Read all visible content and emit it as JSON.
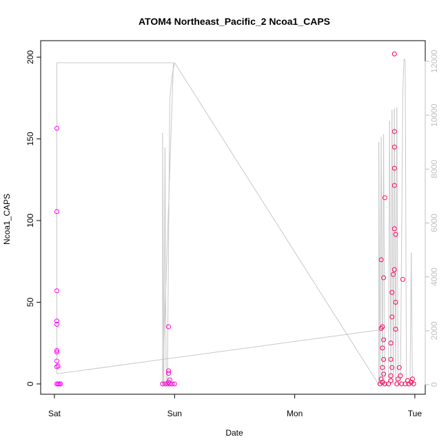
{
  "chart_data": {
    "type": "scatter",
    "title": "ATOM4 Northeast_Pacific_2 Ncoa1_CAPS",
    "xlabel": "Date",
    "ylabel": "Ncoa1_CAPS",
    "x_ticks": [
      "Sat",
      "Sun",
      "Mon",
      "Tue"
    ],
    "y_ticks": [
      "0",
      "50",
      "100",
      "150",
      "200"
    ],
    "ylim": [
      0,
      210
    ],
    "y2_ticks": [
      "0",
      "2000",
      "4000",
      "6000",
      "8000",
      "10000",
      "12000"
    ],
    "y2lim": [
      0,
      12600
    ],
    "xlim_days": [
      -0.1,
      3.1
    ],
    "colors": {
      "points_start": "#ff00ff",
      "points_end": "#ff0055",
      "line": "#c8c8c8",
      "axis": "#000000",
      "axis_right": "#bfbfbf"
    },
    "series": [
      {
        "type": "scatter",
        "x_unit": "days since Sat",
        "points": [
          [
            0.02,
            0
          ],
          [
            0.03,
            0
          ],
          [
            0.04,
            0
          ],
          [
            0.05,
            0
          ],
          [
            0.02,
            10.5
          ],
          [
            0.03,
            11
          ],
          [
            0.02,
            14
          ],
          [
            0.02,
            19.5
          ],
          [
            0.02,
            20.5
          ],
          [
            0.02,
            36.5
          ],
          [
            0.02,
            38.5
          ],
          [
            0.02,
            57
          ],
          [
            0.02,
            105.5
          ],
          [
            0.02,
            156.5
          ],
          [
            0.9,
            0
          ],
          [
            0.92,
            0
          ],
          [
            0.94,
            0
          ],
          [
            0.96,
            0
          ],
          [
            0.98,
            0
          ],
          [
            1.0,
            0
          ],
          [
            0.95,
            1
          ],
          [
            0.96,
            2.5
          ],
          [
            0.95,
            6.5
          ],
          [
            0.95,
            8
          ],
          [
            0.95,
            35
          ],
          [
            2.71,
            0
          ],
          [
            2.73,
            1
          ],
          [
            2.75,
            0
          ],
          [
            2.72,
            3
          ],
          [
            2.74,
            6
          ],
          [
            2.73,
            10
          ],
          [
            2.74,
            15
          ],
          [
            2.73,
            22
          ],
          [
            2.74,
            27
          ],
          [
            2.72,
            34
          ],
          [
            2.73,
            35
          ],
          [
            2.74,
            65
          ],
          [
            2.72,
            76
          ],
          [
            2.75,
            114
          ],
          [
            2.78,
            0
          ],
          [
            2.8,
            2
          ],
          [
            2.8,
            5
          ],
          [
            2.81,
            10
          ],
          [
            2.8,
            15
          ],
          [
            2.8,
            25
          ],
          [
            2.81,
            41
          ],
          [
            2.81,
            56
          ],
          [
            2.82,
            67
          ],
          [
            2.83,
            70
          ],
          [
            2.83,
            95
          ],
          [
            2.83,
            121.5
          ],
          [
            2.83,
            132
          ],
          [
            2.83,
            145
          ],
          [
            2.83,
            154.5
          ],
          [
            2.84,
            50
          ],
          [
            2.84,
            91.5
          ],
          [
            2.84,
            33.5
          ],
          [
            2.83,
            202
          ],
          [
            2.85,
            0
          ],
          [
            2.86,
            3
          ],
          [
            2.87,
            10
          ],
          [
            2.88,
            5
          ],
          [
            2.89,
            0
          ],
          [
            2.9,
            64
          ],
          [
            2.92,
            0
          ],
          [
            2.94,
            2
          ],
          [
            2.95,
            0
          ],
          [
            2.97,
            1
          ],
          [
            2.98,
            3
          ],
          [
            2.99,
            0
          ]
        ]
      },
      {
        "type": "line",
        "axis": "right",
        "x_unit": "days since Sat",
        "points": [
          [
            0.02,
            400
          ],
          [
            0.02,
            11950
          ],
          [
            0.025,
            11950
          ],
          [
            0.99,
            11950
          ],
          [
            0.99,
            11900
          ],
          [
            0.9,
            0
          ],
          [
            0.9,
            9350
          ],
          [
            0.91,
            0
          ],
          [
            0.92,
            8800
          ],
          [
            0.93,
            0
          ],
          [
            0.94,
            0
          ],
          [
            0.96,
            10600
          ],
          [
            0.98,
            11500
          ],
          [
            1.0,
            11950
          ],
          [
            2.7,
            0
          ],
          [
            2.7,
            9000
          ],
          [
            2.71,
            0
          ],
          [
            2.72,
            9200
          ],
          [
            2.73,
            0
          ],
          [
            2.74,
            9300
          ],
          [
            2.75,
            0
          ],
          [
            2.78,
            0
          ],
          [
            2.79,
            9800
          ],
          [
            2.8,
            0
          ],
          [
            2.81,
            10200
          ],
          [
            2.82,
            0
          ],
          [
            2.83,
            10250
          ],
          [
            2.84,
            0
          ],
          [
            2.85,
            10300
          ],
          [
            2.86,
            0
          ],
          [
            2.88,
            0
          ],
          [
            2.9,
            10900
          ],
          [
            2.91,
            12100
          ],
          [
            2.92,
            12000
          ],
          [
            2.93,
            0
          ],
          [
            2.96,
            0
          ],
          [
            2.97,
            4900
          ],
          [
            2.98,
            0
          ],
          [
            0.02,
            400
          ],
          [
            2.74,
            2050
          ]
        ]
      }
    ]
  }
}
